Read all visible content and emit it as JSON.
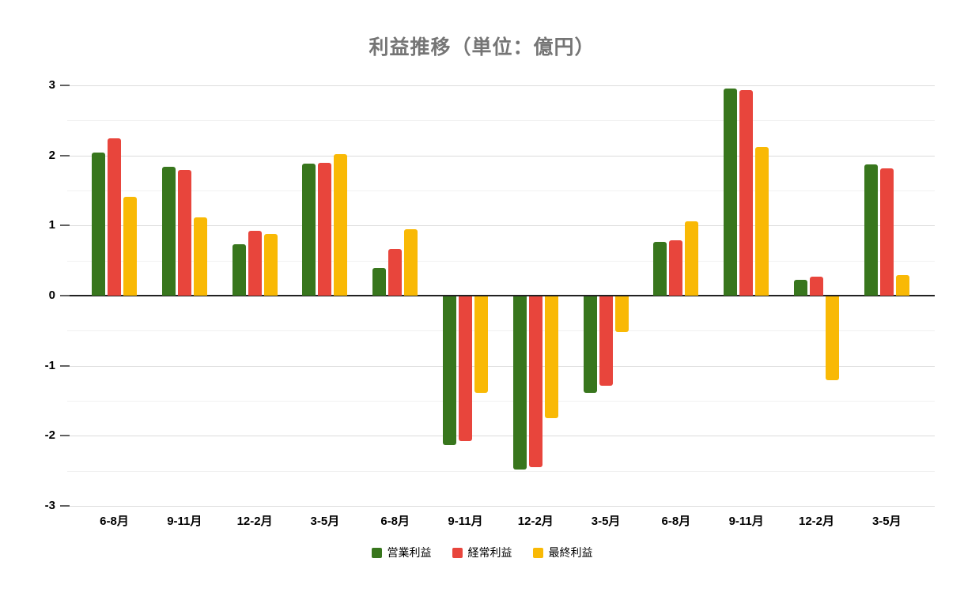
{
  "chart_data": {
    "type": "bar",
    "title": "利益推移（単位：億円）",
    "categories": [
      "6-8月",
      "9-11月",
      "12-2月",
      "3-5月",
      "6-8月",
      "9-11月",
      "12-2月",
      "3-5月",
      "6-8月",
      "9-11月",
      "12-2月",
      "3-5月"
    ],
    "series": [
      {
        "name": "営業利益",
        "color": "#38761d",
        "values": [
          2.04,
          1.84,
          0.73,
          1.88,
          0.4,
          -2.12,
          -2.47,
          -1.38,
          0.77,
          2.96,
          0.23,
          1.87
        ]
      },
      {
        "name": "経常利益",
        "color": "#e8453c",
        "values": [
          2.24,
          1.79,
          0.93,
          1.89,
          0.66,
          -2.06,
          -2.44,
          -1.28,
          0.79,
          2.93,
          0.27,
          1.82
        ]
      },
      {
        "name": "最終利益",
        "color": "#f9b905",
        "values": [
          1.41,
          1.12,
          0.88,
          2.02,
          0.95,
          -1.38,
          -1.74,
          -0.51,
          1.06,
          2.12,
          -1.19,
          0.29
        ]
      }
    ],
    "ylim": [
      -3,
      3
    ],
    "y_major_tick_step": 1,
    "y_minor_tick_step": 0.5,
    "y_tick_labels": [
      "3",
      "2",
      "1",
      "0",
      "-1",
      "-2",
      "-3"
    ],
    "grid": "on",
    "legend_position": "bottom"
  },
  "style_colors": {
    "title_text": "#757575",
    "axis_label_text": "#000000",
    "legend_text": "#000000",
    "major_grid": "#dcdcdc",
    "minor_grid": "#f1f1f1",
    "zero_line": "#212121",
    "background": "#ffffff"
  }
}
